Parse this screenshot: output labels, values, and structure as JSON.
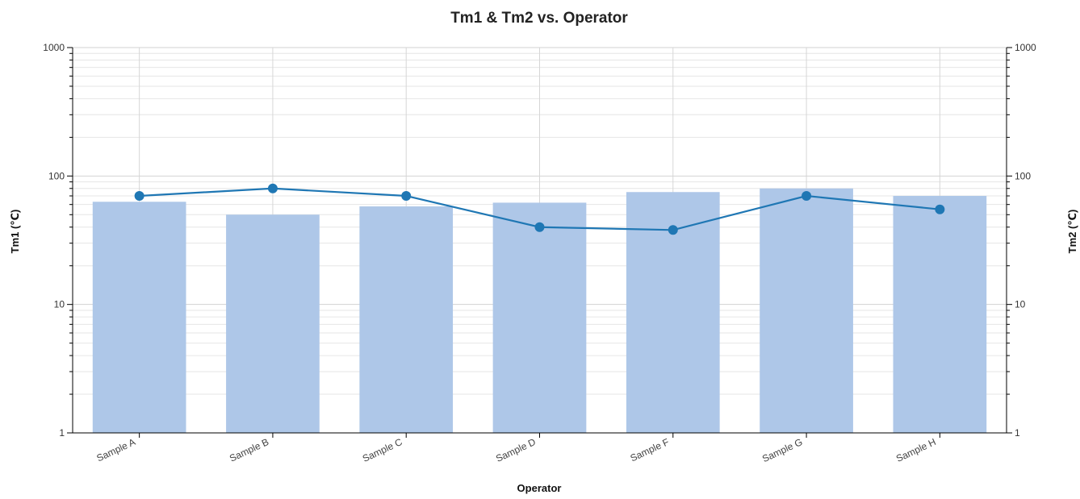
{
  "chart_data": {
    "type": "bar",
    "title": "Tm1 & Tm2 vs. Operator",
    "xlabel": "Operator",
    "ylabel": "Tm1 (℃)",
    "y2label": "Tm2 (℃)",
    "categories": [
      "Sample A",
      "Sample B",
      "Sample C",
      "Sample D",
      "Sample F",
      "Sample G",
      "Sample H"
    ],
    "series": [
      {
        "kind": "bar",
        "axis": "left",
        "color": "#aec7e8",
        "values": [
          63,
          50,
          58,
          62,
          75,
          80,
          70
        ]
      },
      {
        "kind": "line",
        "axis": "right",
        "color": "#1f77b4",
        "values": [
          70,
          80,
          70,
          40,
          38,
          70,
          55
        ]
      }
    ],
    "y_scale": "log",
    "ylim": [
      1,
      1000
    ],
    "y2lim": [
      1,
      1000
    ],
    "yticks": [
      "1",
      "10",
      "100",
      "1000"
    ],
    "y2ticks": [
      "1",
      "10",
      "100",
      "1000"
    ],
    "grid": true,
    "legend": "none"
  }
}
